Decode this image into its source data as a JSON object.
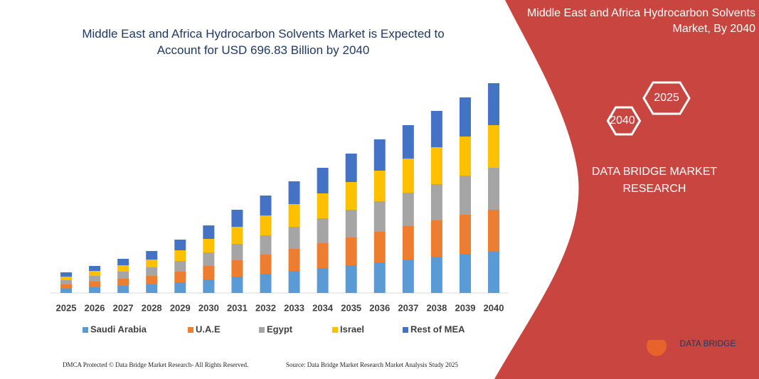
{
  "chart_data": {
    "type": "stacked-bar",
    "title": "Middle East and Africa Hydrocarbon Solvents Market is Expected to Account for USD 696.83 Billion by 2040",
    "categories": [
      "2025",
      "2026",
      "2027",
      "2028",
      "2029",
      "2030",
      "2031",
      "2032",
      "2033",
      "2034",
      "2035",
      "2036",
      "2037",
      "2038",
      "2039",
      "2040"
    ],
    "series": [
      {
        "name": "Saudi Arabia",
        "color": "#5b9bd5",
        "values": [
          6,
          8,
          10,
          12,
          15,
          19,
          23,
          27,
          31,
          35,
          39,
          43,
          47,
          51,
          55,
          58
        ]
      },
      {
        "name": "U.A.E",
        "color": "#ed7d31",
        "values": [
          6,
          8,
          10,
          12,
          15,
          19,
          23,
          27,
          31,
          35,
          39,
          43,
          47,
          51,
          55,
          59
        ]
      },
      {
        "name": "Egypt",
        "color": "#a5a5a5",
        "values": [
          6,
          8,
          10,
          12,
          15,
          19,
          23,
          27,
          31,
          35,
          39,
          43,
          47,
          51,
          55,
          59
        ]
      },
      {
        "name": "Israel",
        "color": "#ffc000",
        "values": [
          5,
          7,
          9,
          11,
          15,
          19,
          24,
          28,
          32,
          35,
          39,
          43,
          48,
          52,
          55,
          60
        ]
      },
      {
        "name": "Rest of MEA",
        "color": "#4472c4",
        "values": [
          6,
          7,
          9,
          12,
          15,
          19,
          24,
          28,
          32,
          36,
          40,
          44,
          47,
          51,
          55,
          59
        ]
      }
    ],
    "ylim": [
      0,
      300
    ]
  },
  "panel": {
    "title": "Middle East and Africa Hydrocarbon Solvents Market, By 2040",
    "hex_start": "2025",
    "hex_end": "2040",
    "brand": "DATA BRIDGE MARKET RESEARCH"
  },
  "logo": "DATA BRIDGE",
  "footer": {
    "left": "DMCA Protected © Data Bridge Market Research- All Rights Reserved.",
    "right": "Source: Data Bridge Market Research Market Analysis Study 2025"
  }
}
